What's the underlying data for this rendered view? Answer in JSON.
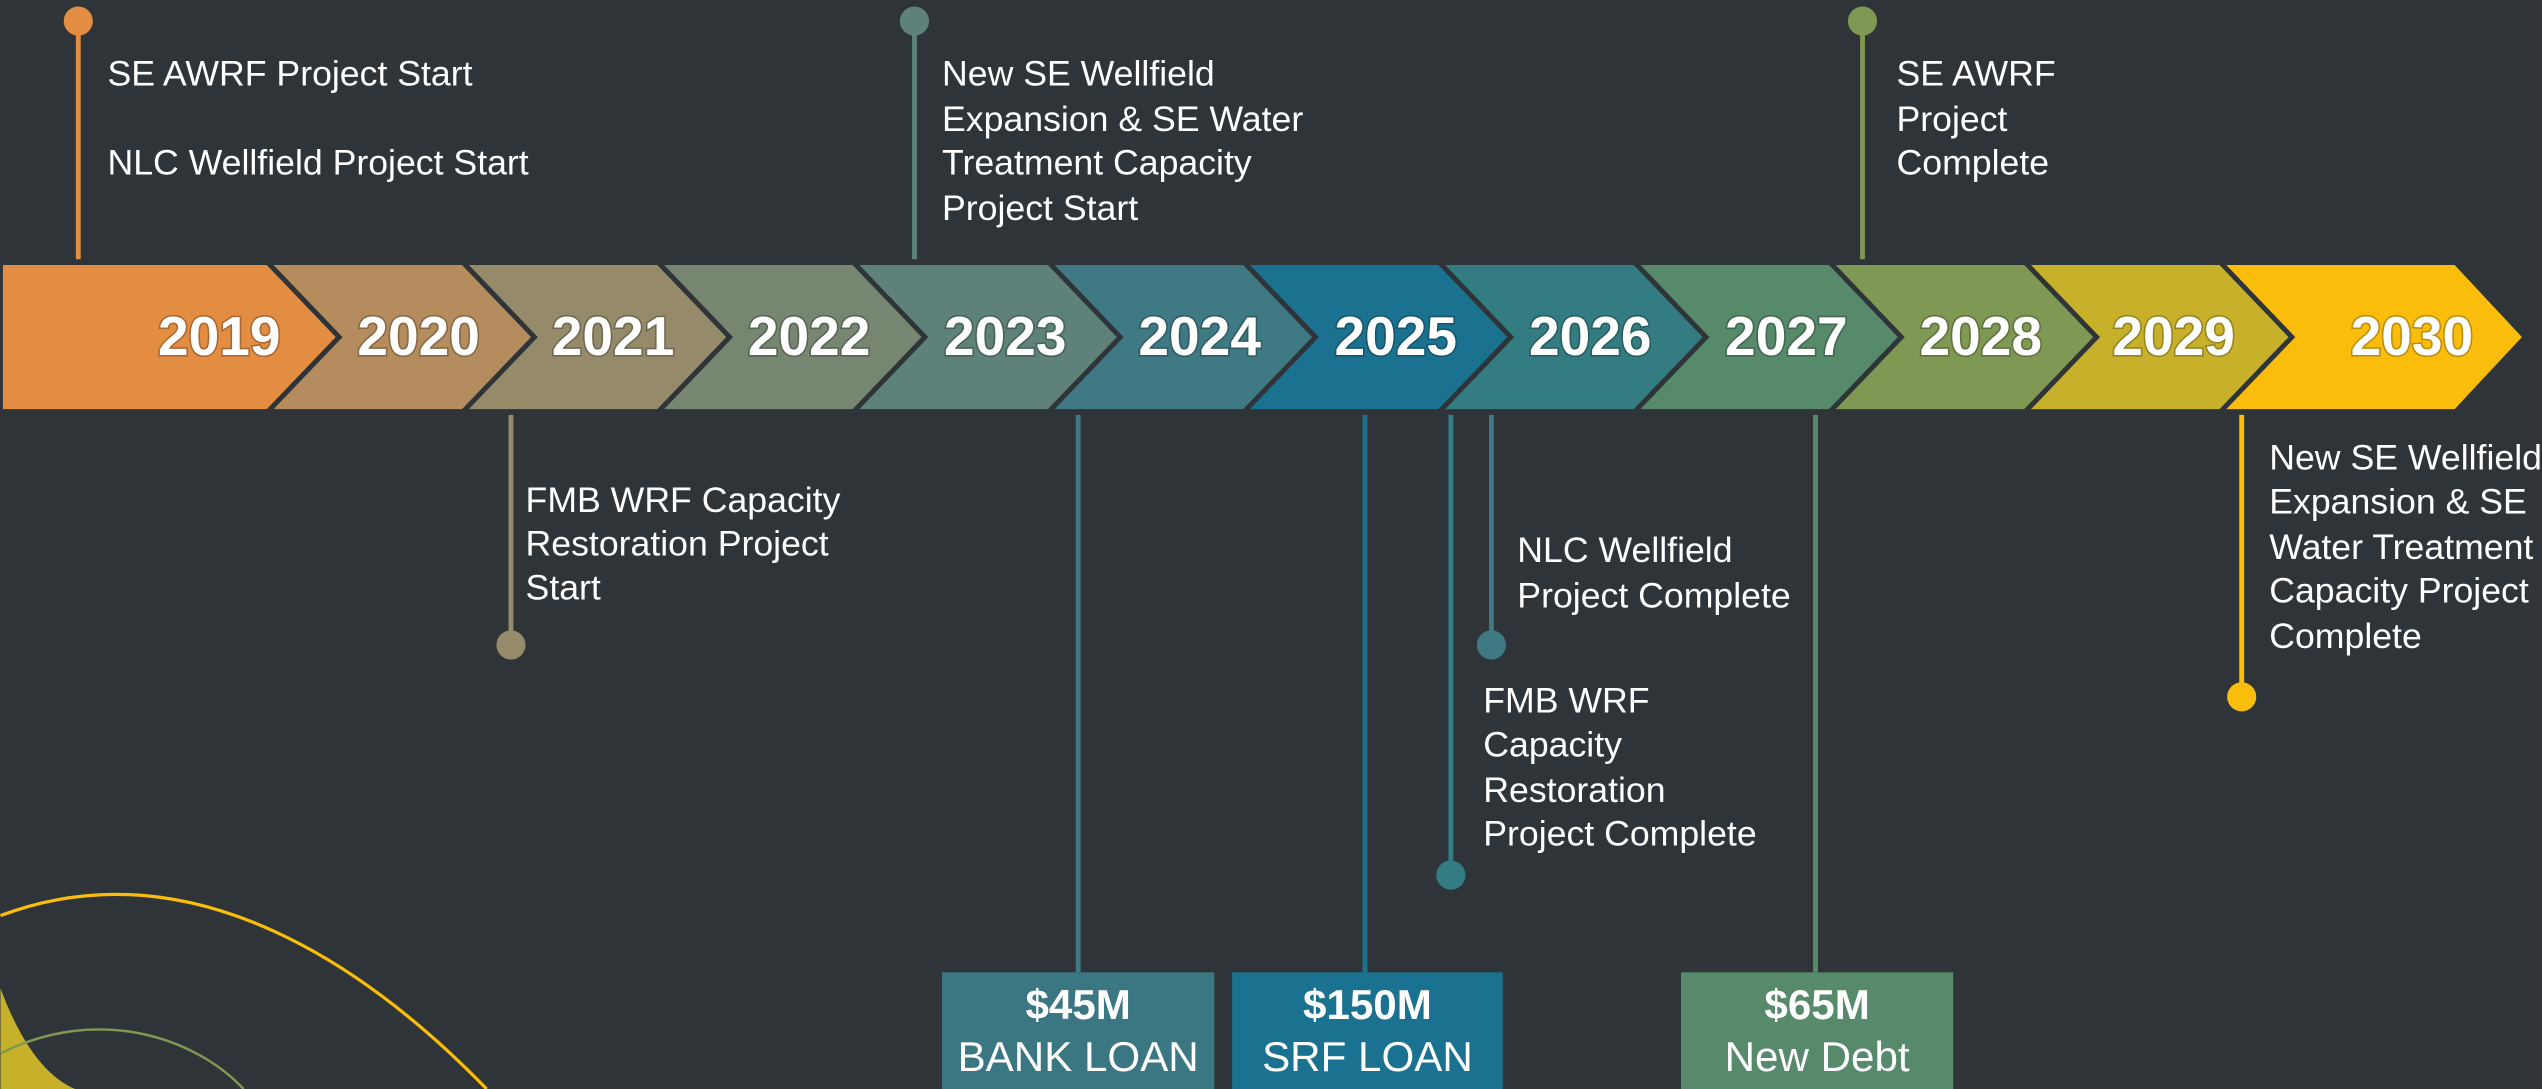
{
  "timeline": {
    "years": [
      "2019",
      "2020",
      "2021",
      "2022",
      "2023",
      "2024",
      "2025",
      "2026",
      "2027",
      "2028",
      "2029",
      "2030"
    ]
  },
  "milestones": [
    {
      "lines": [
        "SE AWRF Project Start",
        "NLC Wellfield Project Start"
      ]
    },
    {
      "lines": [
        "New SE Wellfield",
        "Expansion & SE Water",
        "Treatment Capacity",
        "Project Start"
      ]
    },
    {
      "lines": [
        "SE AWRF",
        "Project",
        "Complete"
      ]
    },
    {
      "lines": [
        "FMB WRF Capacity",
        "Restoration Project",
        "Start"
      ]
    },
    {
      "lines": [
        "NLC Wellfield",
        "Project Complete"
      ]
    },
    {
      "lines": [
        "FMB WRF",
        "Capacity",
        "Restoration",
        "Project Complete"
      ]
    },
    {
      "lines": [
        "New SE Wellfield",
        "Expansion & SE",
        "Water Treatment",
        "Capacity Project",
        "Complete"
      ]
    }
  ],
  "funding": [
    {
      "amount": "$45M",
      "label": "BANK LOAN"
    },
    {
      "amount": "$150M",
      "label": "SRF LOAN"
    },
    {
      "amount": "$65M",
      "label": "New Debt"
    }
  ]
}
